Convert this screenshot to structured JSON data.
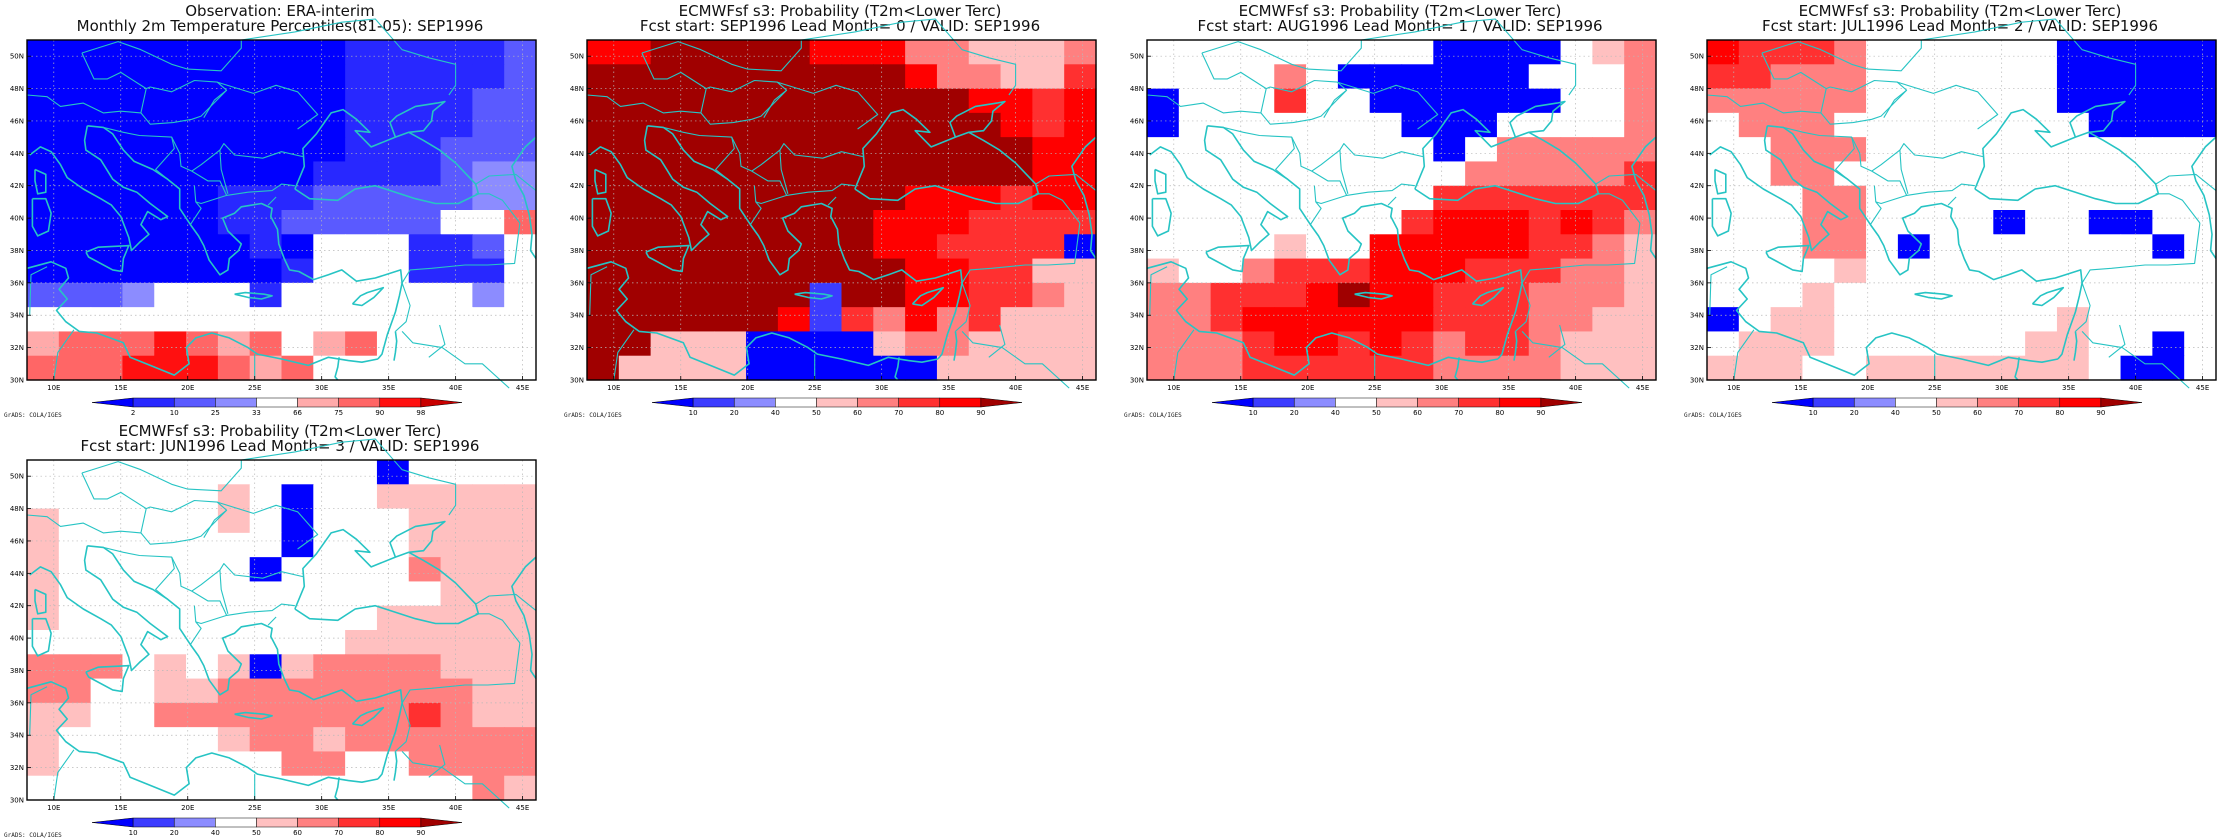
{
  "panels": [
    {
      "id": "obs",
      "title_line1": "Observation: ERA-interim",
      "title_line2": "Monthly 2m Temperature Percentiles(81-05): SEP1996",
      "colorbar_labels": [
        "2",
        "10",
        "25",
        "33",
        "66",
        "75",
        "90",
        "98"
      ],
      "colors": [
        "#0000ff",
        "#2828ff",
        "#5a5aff",
        "#8c8cff",
        "#ffffff",
        "#ffaaaa",
        "#ff6666",
        "#ff1010",
        "#c80000"
      ],
      "grid": [
        [
          0,
          0,
          0,
          0,
          0,
          0,
          0,
          0,
          0,
          0,
          1,
          1,
          1,
          1,
          1,
          2
        ],
        [
          0,
          0,
          0,
          0,
          0,
          0,
          0,
          0,
          0,
          0,
          1,
          1,
          1,
          1,
          1,
          2
        ],
        [
          0,
          0,
          0,
          0,
          0,
          0,
          0,
          0,
          0,
          0,
          1,
          1,
          1,
          1,
          2,
          2
        ],
        [
          0,
          0,
          0,
          0,
          0,
          0,
          0,
          0,
          0,
          0,
          1,
          1,
          1,
          1,
          2,
          2
        ],
        [
          0,
          0,
          0,
          0,
          0,
          0,
          0,
          0,
          0,
          0,
          1,
          1,
          1,
          2,
          2,
          2
        ],
        [
          0,
          0,
          0,
          0,
          0,
          0,
          0,
          0,
          0,
          1,
          1,
          1,
          1,
          2,
          3,
          3
        ],
        [
          0,
          0,
          0,
          0,
          0,
          0,
          1,
          1,
          1,
          2,
          2,
          2,
          2,
          2,
          3,
          3
        ],
        [
          0,
          0,
          0,
          0,
          0,
          0,
          1,
          1,
          2,
          2,
          2,
          2,
          2,
          4,
          4,
          6
        ],
        [
          0,
          0,
          0,
          0,
          0,
          0,
          0,
          1,
          0,
          4,
          4,
          4,
          1,
          1,
          2,
          4
        ],
        [
          0,
          0,
          0,
          0,
          0,
          0,
          0,
          0,
          1,
          4,
          4,
          4,
          1,
          1,
          1,
          4
        ],
        [
          2,
          2,
          2,
          3,
          4,
          4,
          4,
          1,
          4,
          4,
          4,
          4,
          4,
          4,
          3,
          4
        ],
        [
          4,
          4,
          4,
          4,
          4,
          4,
          4,
          4,
          4,
          4,
          4,
          4,
          4,
          4,
          4,
          4
        ],
        [
          5,
          6,
          6,
          6,
          7,
          6,
          5,
          6,
          4,
          5,
          6,
          4,
          4,
          4,
          4,
          4
        ],
        [
          6,
          6,
          6,
          7,
          7,
          7,
          6,
          5,
          6,
          4,
          4,
          4,
          4,
          4,
          4,
          4
        ]
      ]
    },
    {
      "id": "lead0",
      "title_line1": "ECMWFsf s3: Probability (T2m<Lower Terc)",
      "title_line2": "Fcst start: SEP1996  Lead Month= 0 / VALID: SEP1996",
      "colorbar_labels": [
        "10",
        "20",
        "40",
        "50",
        "60",
        "70",
        "80",
        "90"
      ],
      "colors": [
        "#0000ff",
        "#3c3cff",
        "#8c8cff",
        "#ffffff",
        "#ffc0c0",
        "#ff8080",
        "#ff3030",
        "#ff0000",
        "#a00000"
      ],
      "grid": [
        [
          7,
          7,
          8,
          8,
          8,
          8,
          8,
          7,
          7,
          7,
          5,
          5,
          4,
          4,
          4,
          5
        ],
        [
          8,
          8,
          8,
          8,
          8,
          8,
          8,
          8,
          8,
          8,
          7,
          5,
          5,
          4,
          4,
          6
        ],
        [
          8,
          8,
          8,
          8,
          8,
          8,
          8,
          8,
          8,
          8,
          8,
          8,
          7,
          7,
          6,
          7
        ],
        [
          8,
          8,
          8,
          8,
          8,
          8,
          8,
          8,
          8,
          8,
          8,
          8,
          8,
          7,
          6,
          7
        ],
        [
          8,
          8,
          8,
          8,
          8,
          8,
          8,
          8,
          8,
          8,
          8,
          8,
          8,
          8,
          7,
          7
        ],
        [
          8,
          8,
          8,
          8,
          8,
          8,
          8,
          8,
          8,
          8,
          8,
          8,
          8,
          8,
          7,
          7
        ],
        [
          8,
          8,
          8,
          8,
          8,
          8,
          8,
          8,
          8,
          8,
          7,
          7,
          7,
          6,
          7,
          7
        ],
        [
          8,
          8,
          8,
          8,
          8,
          8,
          8,
          8,
          8,
          7,
          7,
          7,
          6,
          6,
          6,
          6
        ],
        [
          8,
          8,
          8,
          8,
          8,
          8,
          8,
          8,
          8,
          7,
          7,
          6,
          6,
          6,
          6,
          0
        ],
        [
          8,
          8,
          8,
          8,
          8,
          8,
          8,
          8,
          8,
          8,
          7,
          7,
          6,
          6,
          4,
          4
        ],
        [
          8,
          8,
          8,
          8,
          8,
          8,
          8,
          1,
          8,
          8,
          7,
          7,
          6,
          6,
          5,
          4
        ],
        [
          8,
          8,
          8,
          8,
          8,
          8,
          7,
          1,
          6,
          5,
          7,
          5,
          6,
          4,
          4,
          4
        ],
        [
          8,
          8,
          4,
          4,
          4,
          0,
          0,
          0,
          0,
          4,
          5,
          5,
          4,
          4,
          4,
          4
        ],
        [
          8,
          4,
          4,
          4,
          4,
          0,
          0,
          0,
          0,
          0,
          0,
          4,
          4,
          4,
          4,
          4
        ]
      ]
    },
    {
      "id": "lead1",
      "title_line1": "ECMWFsf s3: Probability (T2m<Lower Terc)",
      "title_line2": "Fcst start: AUG1996  Lead Month= 1 / VALID: SEP1996",
      "colorbar_labels": [
        "10",
        "20",
        "40",
        "50",
        "60",
        "70",
        "80",
        "90"
      ],
      "colors": [
        "#0000ff",
        "#3c3cff",
        "#8c8cff",
        "#ffffff",
        "#ffc0c0",
        "#ff8080",
        "#ff3030",
        "#ff0000",
        "#a00000"
      ],
      "grid": [
        [
          3,
          3,
          3,
          3,
          3,
          3,
          3,
          3,
          3,
          0,
          0,
          0,
          0,
          3,
          4,
          5
        ],
        [
          3,
          3,
          3,
          3,
          5,
          3,
          0,
          0,
          0,
          0,
          0,
          0,
          3,
          3,
          3,
          5
        ],
        [
          0,
          3,
          3,
          3,
          6,
          3,
          3,
          0,
          0,
          0,
          0,
          0,
          0,
          3,
          3,
          5
        ],
        [
          0,
          3,
          3,
          3,
          3,
          3,
          3,
          3,
          0,
          0,
          0,
          3,
          3,
          3,
          3,
          5
        ],
        [
          3,
          3,
          3,
          3,
          3,
          3,
          3,
          3,
          3,
          0,
          3,
          5,
          5,
          5,
          5,
          5
        ],
        [
          3,
          3,
          3,
          3,
          3,
          3,
          3,
          3,
          3,
          3,
          5,
          5,
          5,
          5,
          5,
          6
        ],
        [
          3,
          3,
          3,
          3,
          3,
          3,
          3,
          3,
          3,
          6,
          6,
          6,
          6,
          6,
          6,
          6
        ],
        [
          3,
          3,
          3,
          3,
          3,
          3,
          3,
          3,
          6,
          7,
          7,
          7,
          6,
          7,
          6,
          5
        ],
        [
          3,
          3,
          3,
          3,
          4,
          3,
          3,
          7,
          7,
          7,
          7,
          7,
          6,
          6,
          5,
          4
        ],
        [
          4,
          3,
          3,
          5,
          6,
          6,
          6,
          7,
          7,
          7,
          6,
          6,
          6,
          5,
          5,
          4
        ],
        [
          5,
          5,
          6,
          6,
          6,
          7,
          8,
          7,
          7,
          6,
          6,
          6,
          5,
          5,
          5,
          4
        ],
        [
          5,
          5,
          6,
          7,
          7,
          7,
          7,
          7,
          7,
          6,
          6,
          6,
          5,
          5,
          4,
          4
        ],
        [
          5,
          5,
          5,
          6,
          7,
          7,
          6,
          7,
          6,
          5,
          6,
          6,
          5,
          4,
          4,
          4
        ],
        [
          5,
          5,
          5,
          6,
          6,
          6,
          6,
          6,
          6,
          5,
          5,
          5,
          5,
          4,
          4,
          4
        ]
      ]
    },
    {
      "id": "lead2",
      "title_line1": "ECMWFsf s3: Probability (T2m<Lower Terc)",
      "title_line2": "Fcst start: JUL1996  Lead Month= 2 / VALID: SEP1996",
      "colorbar_labels": [
        "10",
        "20",
        "40",
        "50",
        "60",
        "70",
        "80",
        "90"
      ],
      "colors": [
        "#0000ff",
        "#3c3cff",
        "#8c8cff",
        "#ffffff",
        "#ffc0c0",
        "#ff8080",
        "#ff3030",
        "#ff0000",
        "#a00000"
      ],
      "grid": [
        [
          7,
          6,
          6,
          6,
          5,
          3,
          3,
          3,
          3,
          3,
          3,
          0,
          0,
          0,
          0,
          0
        ],
        [
          6,
          6,
          5,
          5,
          5,
          3,
          3,
          3,
          3,
          3,
          3,
          0,
          0,
          0,
          0,
          0
        ],
        [
          5,
          5,
          5,
          5,
          5,
          3,
          3,
          3,
          3,
          3,
          3,
          0,
          0,
          0,
          0,
          0
        ],
        [
          3,
          5,
          5,
          5,
          3,
          3,
          3,
          3,
          3,
          3,
          3,
          3,
          0,
          0,
          0,
          0
        ],
        [
          3,
          3,
          5,
          5,
          5,
          3,
          3,
          3,
          3,
          3,
          3,
          3,
          3,
          3,
          3,
          3
        ],
        [
          3,
          3,
          5,
          5,
          3,
          3,
          3,
          3,
          3,
          3,
          3,
          3,
          3,
          3,
          3,
          3
        ],
        [
          3,
          3,
          3,
          5,
          5,
          3,
          3,
          3,
          3,
          3,
          3,
          3,
          3,
          3,
          3,
          3
        ],
        [
          3,
          3,
          3,
          5,
          5,
          3,
          3,
          3,
          3,
          0,
          3,
          3,
          0,
          0,
          3,
          3
        ],
        [
          3,
          3,
          3,
          5,
          5,
          3,
          0,
          3,
          3,
          3,
          3,
          3,
          3,
          3,
          0,
          3
        ],
        [
          3,
          3,
          3,
          3,
          4,
          3,
          3,
          3,
          3,
          3,
          3,
          3,
          3,
          3,
          3,
          3
        ],
        [
          3,
          3,
          3,
          4,
          3,
          3,
          3,
          3,
          3,
          3,
          3,
          3,
          3,
          3,
          3,
          3
        ],
        [
          0,
          3,
          4,
          4,
          3,
          3,
          3,
          3,
          3,
          3,
          3,
          4,
          3,
          3,
          3,
          3
        ],
        [
          3,
          4,
          4,
          4,
          3,
          3,
          3,
          3,
          3,
          3,
          4,
          4,
          3,
          3,
          0,
          3
        ],
        [
          4,
          4,
          4,
          3,
          3,
          4,
          4,
          4,
          4,
          4,
          4,
          4,
          3,
          0,
          0,
          3
        ]
      ]
    },
    {
      "id": "lead3",
      "title_line1": "ECMWFsf s3: Probability (T2m<Lower Terc)",
      "title_line2": "Fcst start: JUN1996  Lead Month= 3 / VALID: SEP1996",
      "colorbar_labels": [
        "10",
        "20",
        "40",
        "50",
        "60",
        "70",
        "80",
        "90"
      ],
      "colors": [
        "#0000ff",
        "#3c3cff",
        "#8c8cff",
        "#ffffff",
        "#ffc0c0",
        "#ff8080",
        "#ff3030",
        "#ff0000",
        "#a00000"
      ],
      "grid": [
        [
          3,
          3,
          3,
          3,
          3,
          3,
          3,
          3,
          3,
          3,
          3,
          0,
          3,
          3,
          3,
          3
        ],
        [
          3,
          3,
          3,
          3,
          3,
          3,
          4,
          3,
          0,
          3,
          3,
          4,
          4,
          4,
          4,
          4
        ],
        [
          4,
          3,
          3,
          3,
          3,
          3,
          4,
          3,
          0,
          3,
          3,
          3,
          4,
          4,
          4,
          4
        ],
        [
          4,
          3,
          3,
          3,
          3,
          3,
          3,
          3,
          0,
          3,
          3,
          3,
          4,
          4,
          4,
          4
        ],
        [
          4,
          3,
          3,
          3,
          3,
          3,
          3,
          0,
          3,
          3,
          3,
          3,
          5,
          4,
          4,
          4
        ],
        [
          4,
          3,
          3,
          3,
          3,
          3,
          3,
          3,
          3,
          3,
          3,
          3,
          3,
          4,
          4,
          4
        ],
        [
          4,
          3,
          3,
          3,
          3,
          3,
          3,
          3,
          3,
          3,
          3,
          4,
          4,
          4,
          4,
          4
        ],
        [
          3,
          3,
          3,
          3,
          3,
          3,
          3,
          3,
          3,
          3,
          4,
          4,
          4,
          4,
          4,
          4
        ],
        [
          5,
          5,
          5,
          3,
          4,
          3,
          4,
          0,
          4,
          5,
          5,
          5,
          5,
          4,
          4,
          4
        ],
        [
          5,
          5,
          3,
          3,
          4,
          4,
          5,
          5,
          5,
          5,
          5,
          5,
          5,
          5,
          4,
          4
        ],
        [
          4,
          4,
          3,
          3,
          5,
          5,
          5,
          5,
          5,
          5,
          5,
          5,
          6,
          5,
          4,
          4
        ],
        [
          4,
          3,
          3,
          3,
          3,
          3,
          4,
          5,
          5,
          4,
          5,
          5,
          5,
          5,
          5,
          5
        ],
        [
          4,
          3,
          3,
          3,
          3,
          3,
          3,
          3,
          5,
          5,
          3,
          3,
          5,
          5,
          5,
          5
        ],
        [
          3,
          3,
          3,
          3,
          3,
          3,
          3,
          3,
          3,
          3,
          3,
          3,
          3,
          3,
          5,
          4
        ]
      ]
    }
  ],
  "lat_labels": [
    "50N",
    "48N",
    "46N",
    "44N",
    "42N",
    "40N",
    "38N",
    "36N",
    "34N",
    "32N",
    "30N"
  ],
  "lon_labels": [
    "10E",
    "15E",
    "20E",
    "25E",
    "30E",
    "35E",
    "40E",
    "45E"
  ],
  "credit": "GrADS: COLA/IGES",
  "colors": {
    "coast": "#27c4c4",
    "frame": "#000000"
  }
}
